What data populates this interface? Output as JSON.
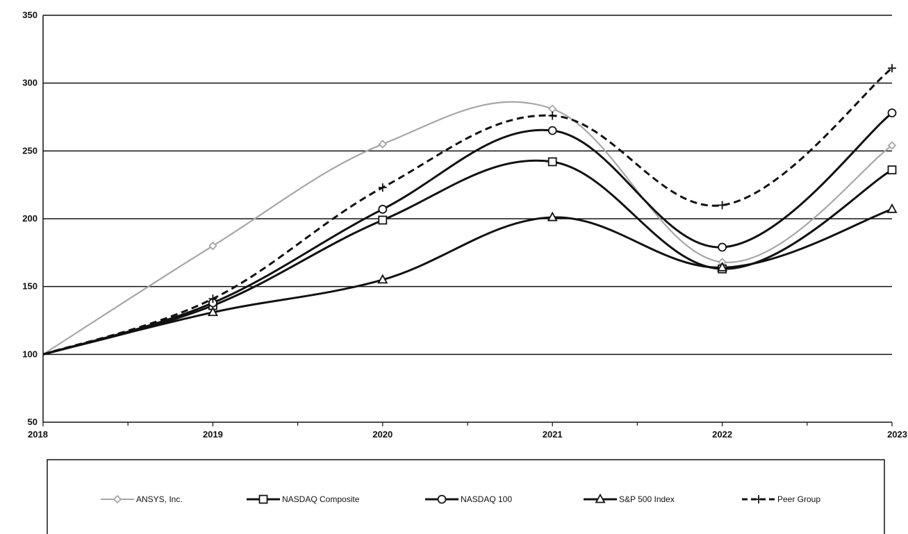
{
  "chart_data": {
    "type": "line",
    "title": "",
    "xlabel": "",
    "ylabel": "",
    "x": [
      2018,
      2019,
      2020,
      2021,
      2022,
      2023
    ],
    "x_tick_labels": [
      "2018",
      "2019",
      "2020",
      "2021",
      "2022",
      "2023"
    ],
    "y_ticks": [
      50,
      100,
      150,
      200,
      250,
      300,
      350
    ],
    "y_tick_labels": [
      "50",
      "100",
      "150",
      "200",
      "250",
      "300",
      "350"
    ],
    "xlim": [
      2018,
      2023
    ],
    "ylim": [
      50,
      350
    ],
    "grid": "horizontal",
    "legend_position": "bottom",
    "series": [
      {
        "name": "ANSYS, Inc.",
        "values": [
          100,
          180,
          255,
          281,
          168,
          254
        ],
        "color": "#a6a6a6",
        "dash": "solid",
        "marker": "diamond"
      },
      {
        "name": "NASDAQ Composite",
        "values": [
          100,
          136,
          199,
          242,
          163,
          236
        ],
        "color": "#111111",
        "dash": "solid",
        "marker": "square"
      },
      {
        "name": "NASDAQ 100",
        "values": [
          100,
          138,
          207,
          265,
          179,
          278
        ],
        "color": "#111111",
        "dash": "solid",
        "marker": "circle"
      },
      {
        "name": "S&P 500 Index",
        "values": [
          100,
          131,
          155,
          201,
          164,
          207
        ],
        "color": "#111111",
        "dash": "solid",
        "marker": "triangle"
      },
      {
        "name": "Peer Group",
        "values": [
          100,
          141,
          223,
          276,
          210,
          311
        ],
        "color": "#111111",
        "dash": "dashed",
        "marker": "plus"
      }
    ]
  }
}
